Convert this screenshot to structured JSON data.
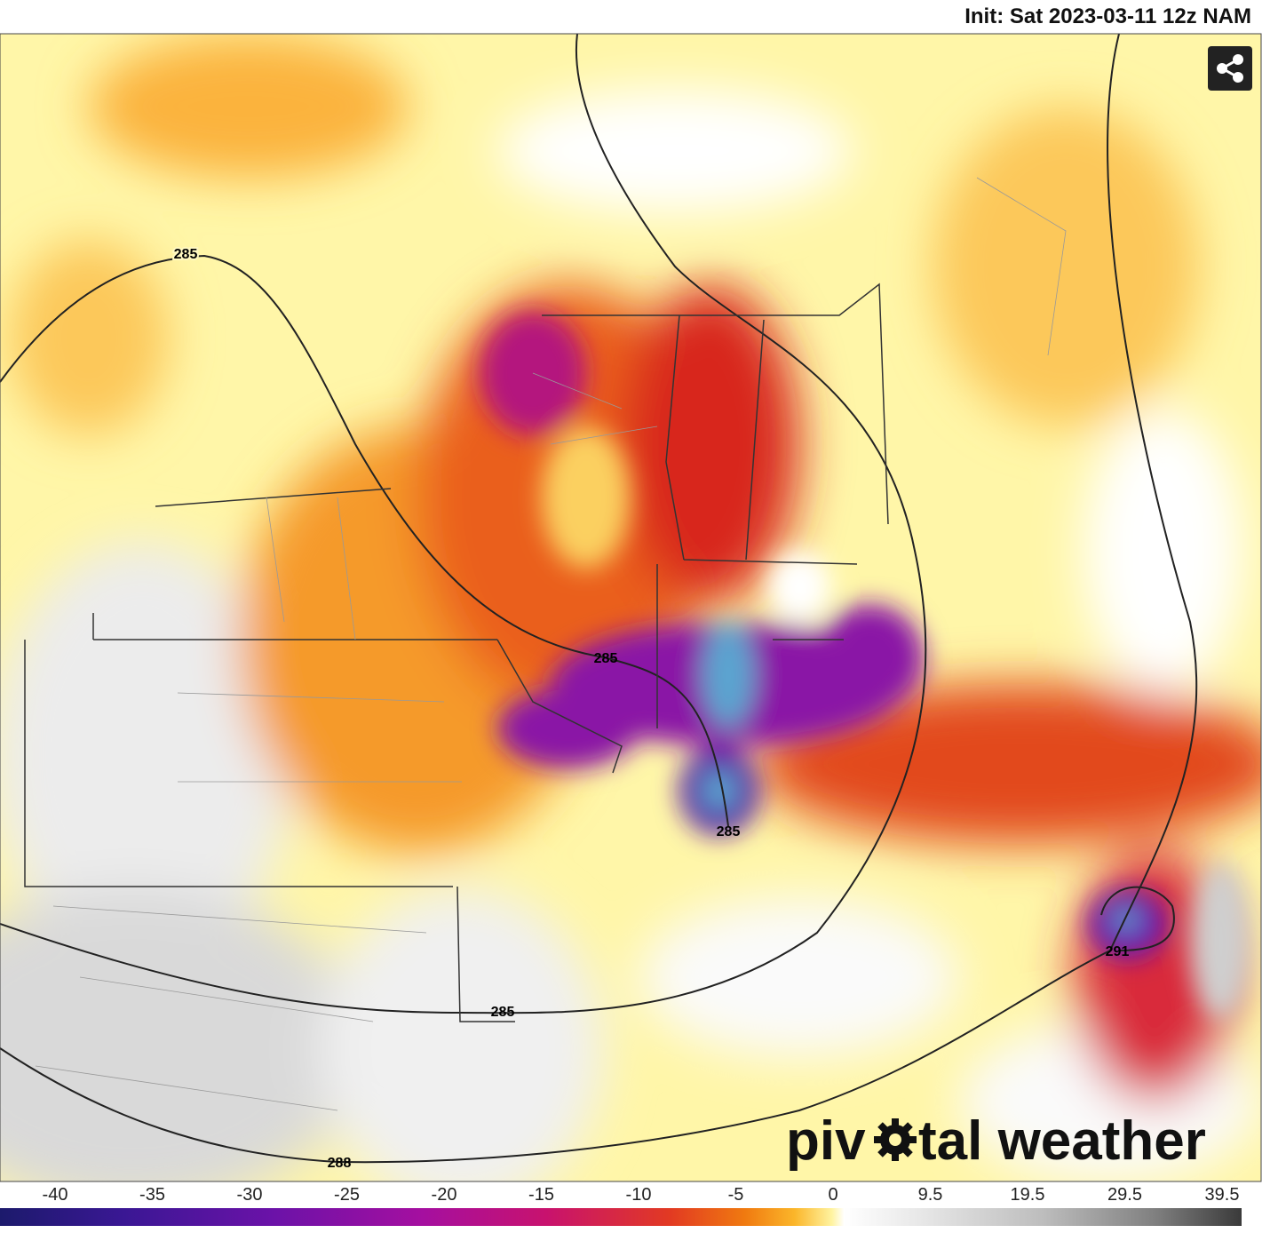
{
  "header": {
    "init": "Init: Sat 2023-03-11 12z NAM"
  },
  "contour_labels": [
    "285",
    "285",
    "285",
    "291",
    "285",
    "288"
  ],
  "logo": {
    "before": "piv",
    "after": "tal weather"
  },
  "colorbar": {
    "labels": [
      "-40",
      "-35",
      "-30",
      "-25",
      "-20",
      "-15",
      "-10",
      "-5",
      "0",
      "9.5",
      "19.5",
      "29.5",
      "39.5"
    ]
  }
}
